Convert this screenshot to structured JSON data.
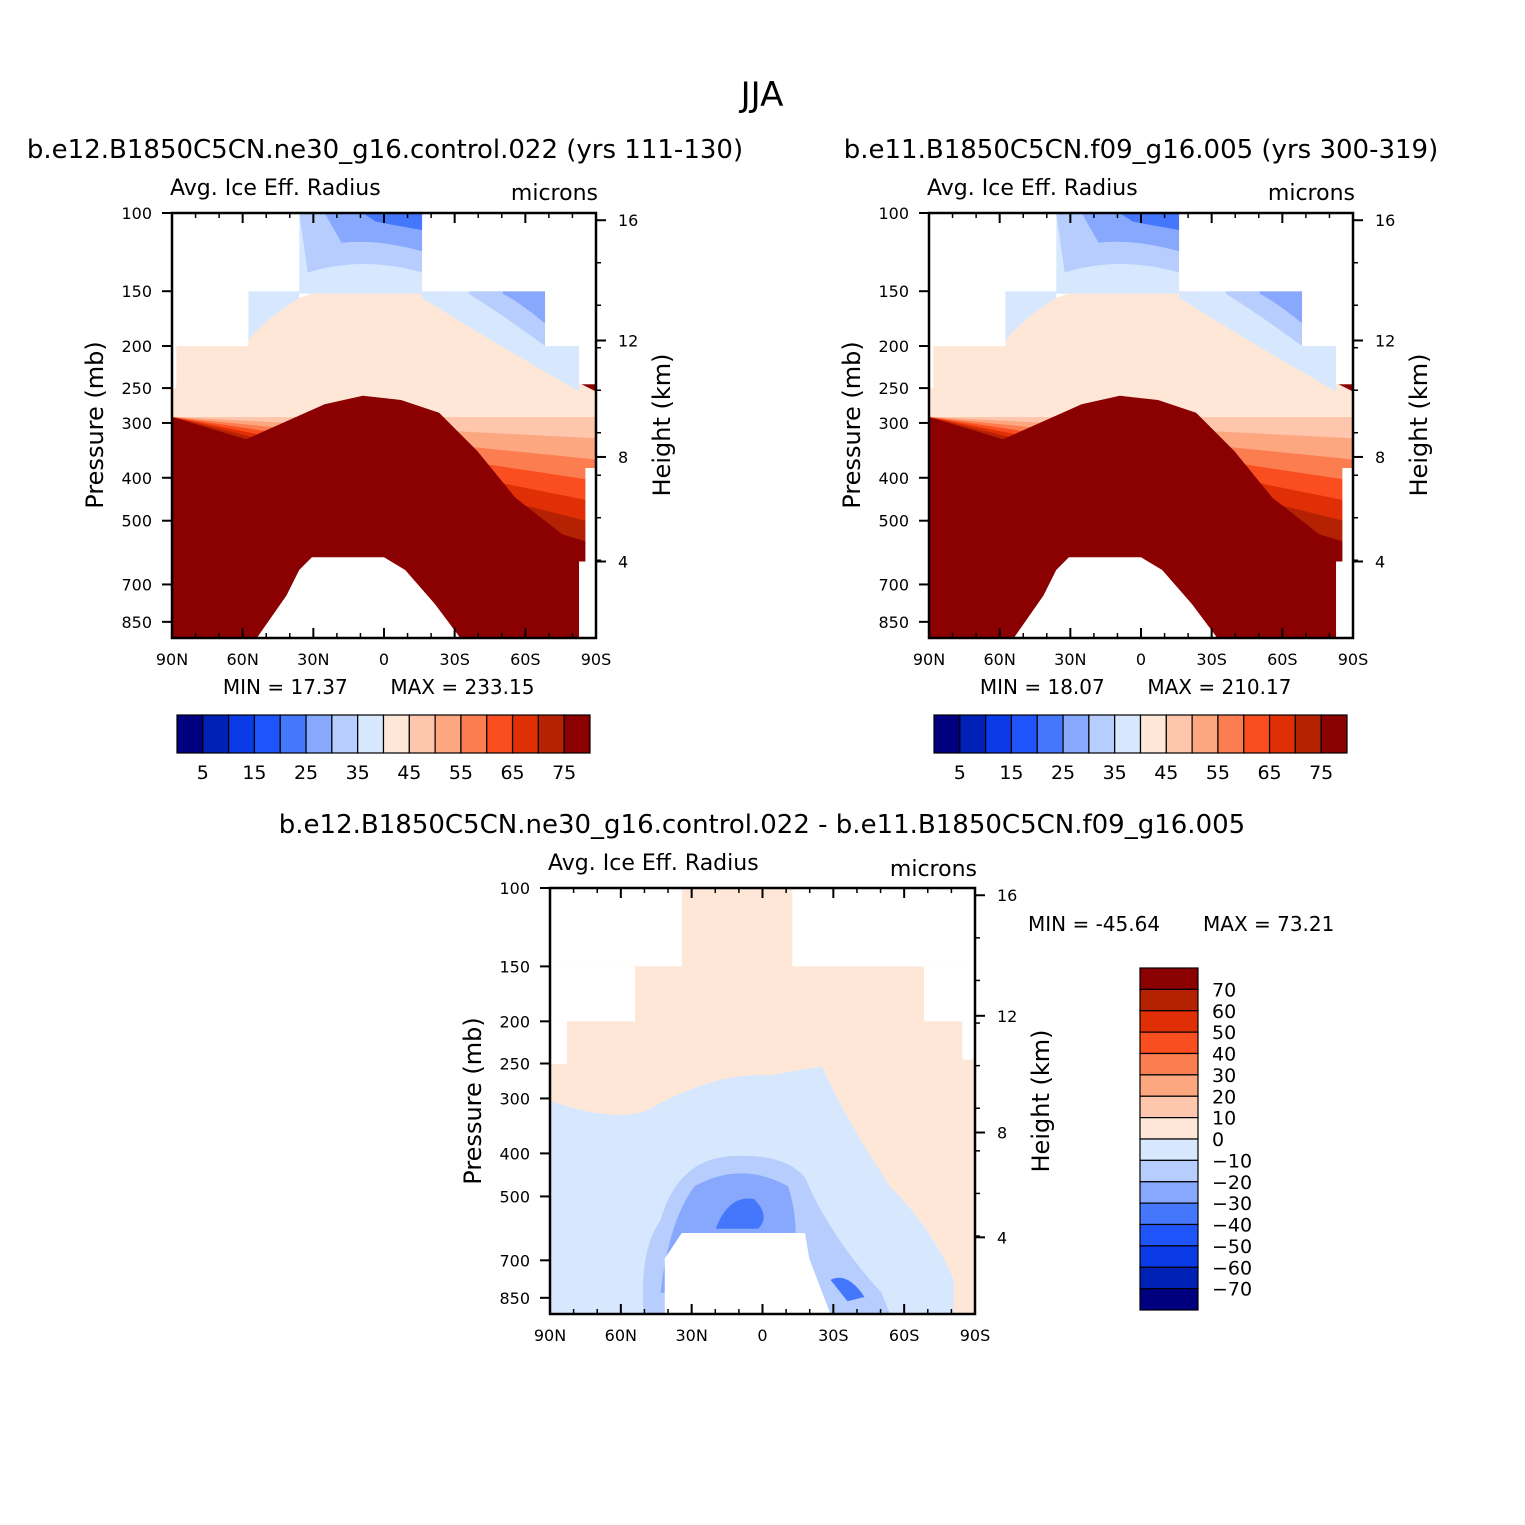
{
  "figure_title": "JJA",
  "colors": {
    "fill_palette": [
      "#00007e",
      "#0021b5",
      "#0b3ae7",
      "#2054fb",
      "#4477fb",
      "#87a8fc",
      "#b7cdfd",
      "#d7e8fe",
      "#fee7d6",
      "#fec6ac",
      "#fca77f",
      "#fb7d50",
      "#fa4d20",
      "#e12f05",
      "#b52103",
      "#8b0000"
    ],
    "diff_palette": [
      "#00007e",
      "#0021b5",
      "#0b3ae7",
      "#2054fb",
      "#4477fb",
      "#87a8fc",
      "#b7cdfd",
      "#d7e8fe",
      "#fee7d6",
      "#fec6ac",
      "#fca77f",
      "#fb7d50",
      "#fa4d20",
      "#e12f05",
      "#b52103",
      "#8b0000"
    ]
  },
  "chart_data": [
    {
      "type": "heatmap",
      "title": "b.e12.B1850C5CN.ne30_g16.control.022 (yrs 111-130)",
      "subtitle_left": "Avg. Ice Eff. Radius",
      "subtitle_right": "microns",
      "ylabel": "Pressure (mb)",
      "ylabel_right": "Height (km)",
      "x_ticks": [
        "90N",
        "60N",
        "30N",
        "0",
        "30S",
        "60S",
        "90S"
      ],
      "y_ticks": [
        "100",
        "150",
        "200",
        "250",
        "300",
        "400",
        "500",
        "700",
        "850"
      ],
      "y_ticks_right": [
        "16",
        "12",
        "8",
        "4"
      ],
      "ylim": [
        100,
        925
      ],
      "min_label": "MIN =   17.37",
      "max_label": "MAX =  233.15",
      "colorbar_labels": [
        "5",
        "15",
        "25",
        "35",
        "45",
        "55",
        "65",
        "75"
      ]
    },
    {
      "type": "heatmap",
      "title": "b.e11.B1850C5CN.f09_g16.005 (yrs 300-319)",
      "subtitle_left": "Avg. Ice Eff. Radius",
      "subtitle_right": "microns",
      "ylabel": "Pressure (mb)",
      "ylabel_right": "Height (km)",
      "x_ticks": [
        "90N",
        "60N",
        "30N",
        "0",
        "30S",
        "60S",
        "90S"
      ],
      "y_ticks": [
        "100",
        "150",
        "200",
        "250",
        "300",
        "400",
        "500",
        "700",
        "850"
      ],
      "y_ticks_right": [
        "16",
        "12",
        "8",
        "4"
      ],
      "ylim": [
        100,
        925
      ],
      "min_label": "MIN =   18.07",
      "max_label": "MAX =  210.17",
      "colorbar_labels": [
        "5",
        "15",
        "25",
        "35",
        "45",
        "55",
        "65",
        "75"
      ]
    },
    {
      "type": "heatmap",
      "title": "b.e12.B1850C5CN.ne30_g16.control.022 - b.e11.B1850C5CN.f09_g16.005",
      "subtitle_left": "Avg. Ice Eff. Radius",
      "subtitle_right": "microns",
      "ylabel": "Pressure (mb)",
      "ylabel_right": "Height (km)",
      "x_ticks": [
        "90N",
        "60N",
        "30N",
        "0",
        "30S",
        "60S",
        "90S"
      ],
      "y_ticks": [
        "100",
        "150",
        "200",
        "250",
        "300",
        "400",
        "500",
        "700",
        "850"
      ],
      "y_ticks_right": [
        "16",
        "12",
        "8",
        "4"
      ],
      "ylim": [
        100,
        925
      ],
      "min_label": "MIN = -45.64",
      "max_label": "MAX =   73.21",
      "colorbar_labels": [
        "70",
        "60",
        "50",
        "40",
        "30",
        "20",
        "10",
        "0",
        "-10",
        "-20",
        "-30",
        "-40",
        "-50",
        "-60",
        "-70"
      ]
    }
  ]
}
